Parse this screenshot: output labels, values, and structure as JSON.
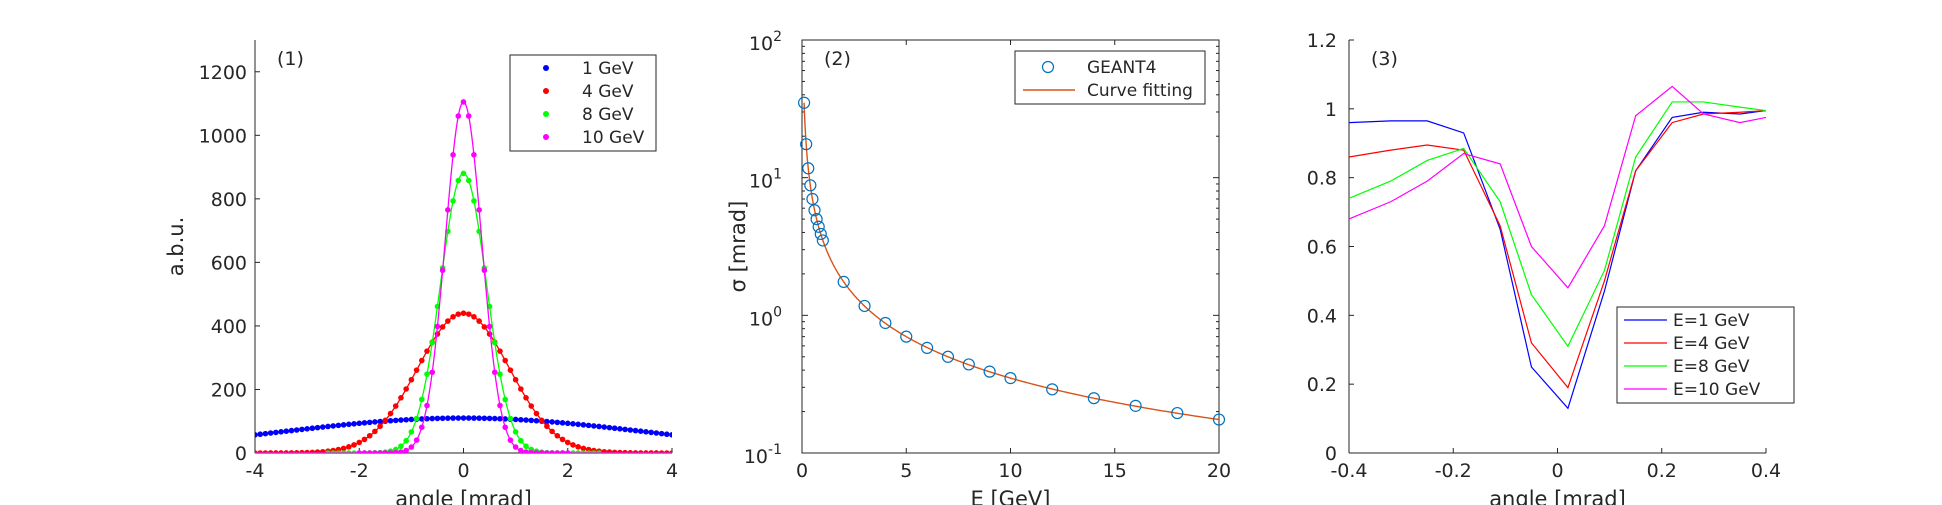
{
  "chart_data": [
    {
      "type": "scatter",
      "panel_label": "(1)",
      "xlabel": "angle [mrad]",
      "ylabel": "a.b.u.",
      "xlim": [
        -4,
        4
      ],
      "ylim": [
        0,
        1300
      ],
      "xticks": [
        -4,
        -2,
        0,
        2,
        4
      ],
      "yticks": [
        0,
        200,
        400,
        600,
        800,
        1000,
        1200
      ],
      "grid": false,
      "legend_position": "top-right",
      "series": [
        {
          "name": "1 GeV",
          "color": "#0000ff",
          "amplitude": 110,
          "sigma": 3.5,
          "x_range": [
            -4,
            4
          ],
          "markers": true,
          "fit_line": true
        },
        {
          "name": "4 GeV",
          "color": "#ff0000",
          "amplitude": 440,
          "sigma": 0.88,
          "x_range": [
            -4,
            4
          ],
          "markers": true,
          "fit_line": true
        },
        {
          "name": "8 GeV",
          "color": "#00ff00",
          "amplitude": 880,
          "sigma": 0.44,
          "x_range": [
            -2.6,
            2.6
          ],
          "markers": true,
          "fit_line": true
        },
        {
          "name": "10 GeV",
          "color": "#ff00ff",
          "amplitude": 1105,
          "sigma": 0.35,
          "x_range": [
            -2.0,
            2.0
          ],
          "markers": true,
          "fit_line": true
        }
      ]
    },
    {
      "type": "scatter",
      "panel_label": "(2)",
      "xlabel": "E [GeV]",
      "ylabel": "σ [mrad]",
      "xlim": [
        0,
        20
      ],
      "ylim": [
        0.1,
        100
      ],
      "yscale": "log",
      "xticks": [
        0,
        5,
        10,
        15,
        20
      ],
      "yticks": [
        {
          "base": "10",
          "exp": "-1"
        },
        {
          "base": "10",
          "exp": "0"
        },
        {
          "base": "10",
          "exp": "1"
        },
        {
          "base": "10",
          "exp": "2"
        }
      ],
      "grid": false,
      "legend_position": "top-right",
      "series": [
        {
          "name": "GEANT4",
          "marker": "circle",
          "color": "#0072bd",
          "x": [
            0.1,
            0.2,
            0.3,
            0.4,
            0.5,
            0.6,
            0.7,
            0.8,
            0.9,
            1,
            2,
            3,
            4,
            5,
            6,
            7,
            8,
            9,
            10,
            12,
            14,
            16,
            18,
            20
          ],
          "y": [
            35,
            17.5,
            11.7,
            8.8,
            7.0,
            5.8,
            5.0,
            4.4,
            3.9,
            3.5,
            1.75,
            1.17,
            0.88,
            0.7,
            0.58,
            0.5,
            0.44,
            0.39,
            0.35,
            0.29,
            0.25,
            0.22,
            0.195,
            0.175
          ]
        },
        {
          "name": "Curve fitting",
          "line": true,
          "color": "#d95319",
          "fit": "sigma = 3.5 / E",
          "x_range": [
            0.1,
            20
          ]
        }
      ]
    },
    {
      "type": "line",
      "panel_label": "(3)",
      "xlabel": "angle [mrad]",
      "ylabel": "",
      "xlim": [
        -0.4,
        0.4
      ],
      "ylim": [
        0,
        1.2
      ],
      "xticks": [
        "-0.4",
        "-0.2",
        "0",
        "0.2",
        "0.4"
      ],
      "yticks": [
        "0",
        "0.2",
        "0.4",
        "0.6",
        "0.8",
        "1",
        "1.2"
      ],
      "grid": false,
      "legend_position": "bottom-right",
      "x": [
        -0.4,
        -0.32,
        -0.25,
        -0.18,
        -0.11,
        -0.05,
        0.02,
        0.09,
        0.15,
        0.22,
        0.28,
        0.35,
        0.4
      ],
      "series": [
        {
          "name": "E=1 GeV",
          "color": "#0000ff",
          "values": [
            0.96,
            0.965,
            0.965,
            0.93,
            0.65,
            0.25,
            0.13,
            0.47,
            0.82,
            0.975,
            0.99,
            0.985,
            0.995
          ]
        },
        {
          "name": "E=4 GeV",
          "color": "#ff0000",
          "values": [
            0.86,
            0.88,
            0.895,
            0.88,
            0.66,
            0.32,
            0.19,
            0.5,
            0.82,
            0.96,
            0.985,
            0.99,
            0.995
          ]
        },
        {
          "name": "E=8 GeV",
          "color": "#00ff00",
          "values": [
            0.74,
            0.79,
            0.85,
            0.885,
            0.73,
            0.46,
            0.31,
            0.53,
            0.86,
            1.02,
            1.02,
            1.005,
            0.995
          ]
        },
        {
          "name": "E=10 GeV",
          "color": "#ff00ff",
          "values": [
            0.68,
            0.73,
            0.79,
            0.87,
            0.84,
            0.6,
            0.48,
            0.66,
            0.98,
            1.065,
            0.985,
            0.96,
            0.975
          ]
        }
      ]
    }
  ]
}
